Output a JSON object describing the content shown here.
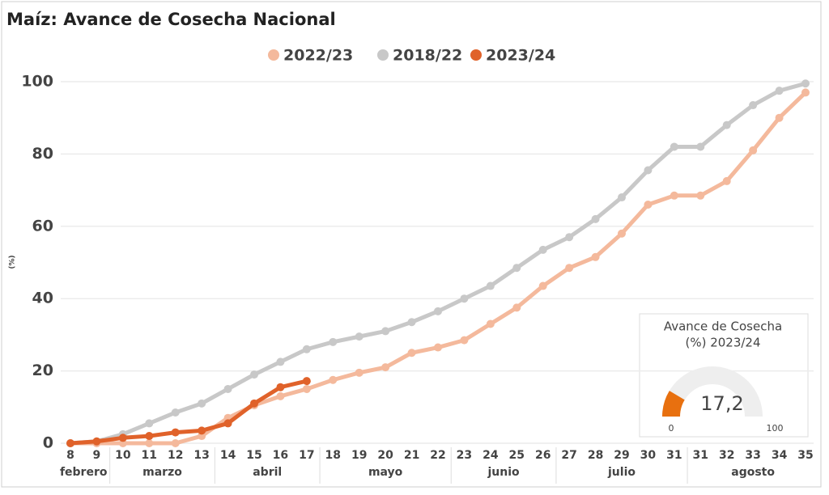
{
  "chart_data": {
    "type": "line",
    "title": "Maíz: Avance de Cosecha Nacional",
    "y_label": "(%)",
    "categories": [
      "8",
      "9",
      "10",
      "11",
      "12",
      "13",
      "14",
      "15",
      "16",
      "17",
      "18",
      "19",
      "20",
      "21",
      "22",
      "23",
      "24",
      "25",
      "26",
      "27",
      "28",
      "29",
      "30",
      "31",
      "31",
      "32",
      "33",
      "34",
      "35"
    ],
    "month_groups": [
      {
        "label": "febrero",
        "count": 2
      },
      {
        "label": "marzo",
        "count": 4
      },
      {
        "label": "abril",
        "count": 4
      },
      {
        "label": "mayo",
        "count": 5
      },
      {
        "label": "junio",
        "count": 4
      },
      {
        "label": "julio",
        "count": 5
      },
      {
        "label": "agosto",
        "count": 5
      }
    ],
    "series": [
      {
        "name": "2022/23",
        "color": "#f4b99c",
        "values": [
          0,
          0,
          0,
          0,
          0,
          2,
          7,
          10.5,
          13,
          15,
          17.5,
          19.5,
          21,
          25,
          26.5,
          28.5,
          33,
          37.5,
          43.5,
          48.5,
          51.5,
          58,
          66,
          68.5,
          68.5,
          72.5,
          81,
          90,
          97
        ]
      },
      {
        "name": "2018/22",
        "color": "#c8c8c8",
        "values": [
          0,
          0.5,
          2.5,
          5.5,
          8.5,
          11,
          15,
          19,
          22.5,
          26,
          28,
          29.5,
          31,
          33.5,
          36.5,
          40,
          43.5,
          48.5,
          53.5,
          57,
          62,
          68,
          75.5,
          82,
          82,
          88,
          93.5,
          97.5,
          99.5
        ]
      },
      {
        "name": "2023/24",
        "color": "#e0622a",
        "values": [
          0,
          0.5,
          1.5,
          2,
          3,
          3.5,
          5.5,
          11,
          15.5,
          17.2,
          null,
          null,
          null,
          null,
          null,
          null,
          null,
          null,
          null,
          null,
          null,
          null,
          null,
          null,
          null,
          null,
          null,
          null,
          null
        ]
      }
    ],
    "ylim": [
      0,
      100
    ],
    "yticks": [
      0,
      20,
      40,
      60,
      80,
      100
    ],
    "grid": true,
    "legend": "top",
    "gauge": {
      "title": "Avance de Cosecha",
      "subtitle": "(%) 2023/24",
      "value": 17.2,
      "value_label": "17,2",
      "min": 0,
      "max": 100,
      "color": "#e8700f"
    }
  }
}
